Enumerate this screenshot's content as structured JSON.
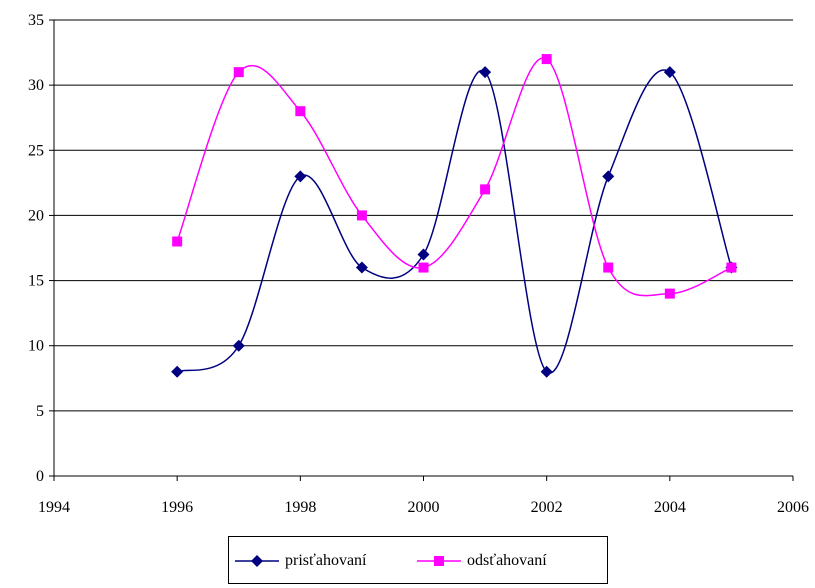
{
  "chart_data": {
    "type": "line",
    "title": "",
    "xlabel": "",
    "ylabel": "",
    "xlim": [
      1994,
      2006
    ],
    "ylim": [
      0,
      35
    ],
    "x_ticks": [
      1994,
      1996,
      1998,
      2000,
      2002,
      2004,
      2006
    ],
    "y_ticks": [
      0,
      5,
      10,
      15,
      20,
      25,
      30,
      35
    ],
    "grid": "horizontal",
    "legend_position": "bottom",
    "x": [
      1996,
      1997,
      1998,
      1999,
      2000,
      2001,
      2002,
      2003,
      2004,
      2005
    ],
    "series": [
      {
        "name": "prisťahovaní",
        "color": "#000080",
        "marker": "diamond",
        "values": [
          8,
          10,
          23,
          16,
          17,
          31,
          8,
          23,
          31,
          16
        ]
      },
      {
        "name": "odsťahovaní",
        "color": "#FF00FF",
        "marker": "square",
        "values": [
          18,
          31,
          28,
          20,
          16,
          22,
          32,
          16,
          14,
          16
        ]
      }
    ]
  }
}
